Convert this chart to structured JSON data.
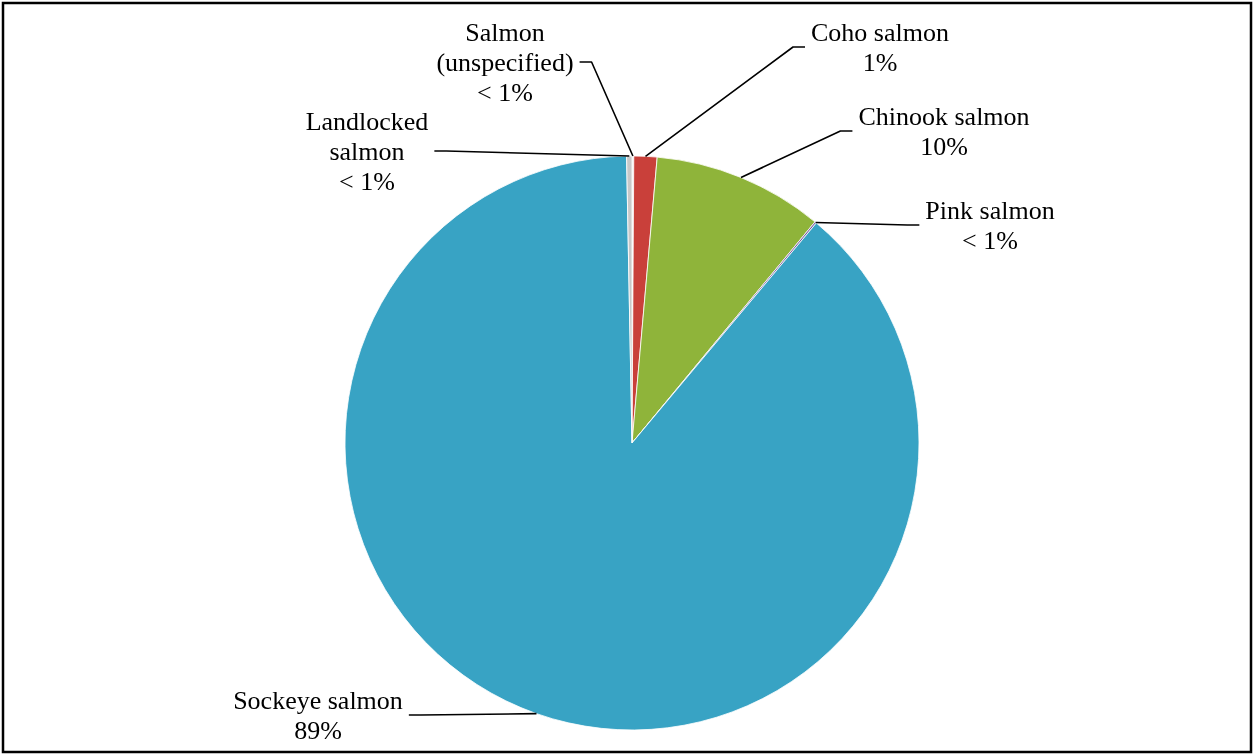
{
  "chart_data": {
    "type": "pie",
    "categories": [
      "Salmon (unspecified)",
      "Coho salmon",
      "Chinook salmon",
      "Pink salmon",
      "Sockeye salmon",
      "Landlocked salmon"
    ],
    "values": [
      0.1,
      1.3,
      9.6,
      0.1,
      88.6,
      0.3
    ],
    "colors": [
      "#eeeeee",
      "#c9403a",
      "#8fb43a",
      "#7f5fa0",
      "#38a3c4",
      "#c8c8c8"
    ],
    "value_labels": [
      "< 1%",
      "1%",
      "10%",
      "< 1%",
      "89%",
      "< 1%"
    ]
  }
}
